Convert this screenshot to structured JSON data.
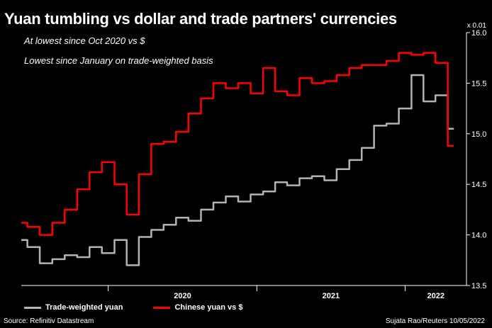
{
  "title": "Yuan tumbling vs dollar and trade partners' currencies",
  "annotations": [
    "At lowest since Oct 2020 vs $",
    "Lowest since January on trade-weighted basis"
  ],
  "source": "Source: Refinitiv Datastream",
  "credit": "Sujata Rao/Reuters 10/05/2022",
  "colors": {
    "background": "#000000",
    "trade_weighted": "#b3b3b3",
    "usd": "#ff0000",
    "axis": "#ffffff"
  },
  "chart_data": {
    "type": "line",
    "title": "Yuan tumbling vs dollar and trade partners' currencies",
    "ylabel": "x 0.01",
    "ylim": [
      13.5,
      16.0
    ],
    "yticks": [
      13.5,
      14.0,
      14.5,
      15.0,
      15.5,
      16.0
    ],
    "ytick_labels": [
      "13.5",
      "14.0",
      "14.5",
      "15.0",
      "15.5",
      "16.0"
    ],
    "xlim": [
      "2019-06-01",
      "2022-06-01"
    ],
    "year_ticks": [
      "2020-01-01",
      "2021-01-01",
      "2022-01-01"
    ],
    "year_labels": [
      "2020",
      "2021",
      "2022"
    ],
    "legend": "bottom",
    "grid": false,
    "series": [
      {
        "name": "Trade-weighted yuan",
        "color": "#b3b3b3",
        "x": [
          "2019-06-01",
          "2019-07-01",
          "2019-08-01",
          "2019-09-01",
          "2019-10-01",
          "2019-11-01",
          "2019-12-01",
          "2020-01-01",
          "2020-02-01",
          "2020-03-01",
          "2020-04-01",
          "2020-05-01",
          "2020-06-01",
          "2020-07-01",
          "2020-08-01",
          "2020-09-01",
          "2020-10-01",
          "2020-11-01",
          "2020-12-01",
          "2021-01-01",
          "2021-02-01",
          "2021-03-01",
          "2021-04-01",
          "2021-05-01",
          "2021-06-01",
          "2021-07-01",
          "2021-08-01",
          "2021-09-01",
          "2021-10-01",
          "2021-11-01",
          "2021-12-01",
          "2022-01-01",
          "2022-02-01",
          "2022-03-01",
          "2022-04-01",
          "2022-05-01"
        ],
        "values": [
          13.95,
          13.88,
          13.72,
          13.76,
          13.8,
          13.78,
          13.88,
          13.82,
          13.95,
          13.7,
          13.98,
          14.05,
          14.1,
          14.17,
          14.14,
          14.25,
          14.32,
          14.38,
          14.33,
          14.4,
          14.43,
          14.52,
          14.49,
          14.56,
          14.58,
          14.54,
          14.65,
          14.74,
          14.86,
          15.08,
          15.1,
          15.25,
          15.58,
          15.32,
          15.38,
          15.05
        ]
      },
      {
        "name": "Chinese yuan vs $",
        "color": "#ff0000",
        "x": [
          "2019-06-01",
          "2019-07-01",
          "2019-08-01",
          "2019-09-01",
          "2019-10-01",
          "2019-11-01",
          "2019-12-01",
          "2020-01-01",
          "2020-02-01",
          "2020-03-01",
          "2020-04-01",
          "2020-05-01",
          "2020-06-01",
          "2020-07-01",
          "2020-08-01",
          "2020-09-01",
          "2020-10-01",
          "2020-11-01",
          "2020-12-01",
          "2021-01-01",
          "2021-02-01",
          "2021-03-01",
          "2021-04-01",
          "2021-05-01",
          "2021-06-01",
          "2021-07-01",
          "2021-08-01",
          "2021-09-01",
          "2021-10-01",
          "2021-11-01",
          "2021-12-01",
          "2022-01-01",
          "2022-02-01",
          "2022-03-01",
          "2022-04-01",
          "2022-05-01"
        ],
        "values": [
          14.12,
          14.08,
          14.0,
          14.12,
          14.25,
          14.45,
          14.62,
          14.72,
          14.5,
          14.2,
          14.6,
          14.9,
          14.92,
          15.02,
          15.2,
          15.35,
          15.5,
          15.45,
          15.5,
          15.4,
          15.65,
          15.42,
          15.38,
          15.55,
          15.5,
          15.52,
          15.58,
          15.65,
          15.68,
          15.68,
          15.72,
          15.8,
          15.78,
          15.8,
          15.7,
          14.88
        ]
      }
    ]
  }
}
